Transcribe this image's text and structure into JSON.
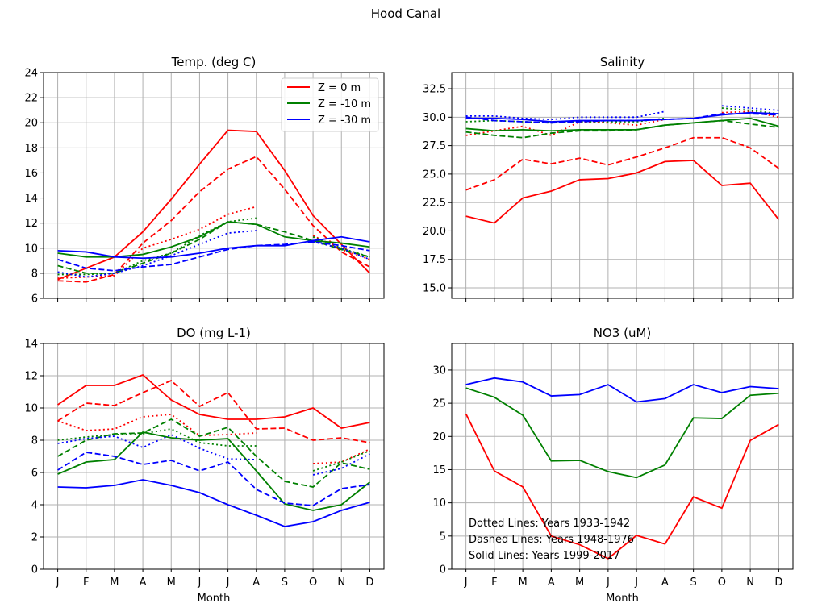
{
  "figure_title": "Hood Canal",
  "months": [
    "J",
    "F",
    "M",
    "A",
    "M",
    "J",
    "J",
    "A",
    "S",
    "O",
    "N",
    "D"
  ],
  "legend": [
    {
      "label": "Z = 0 m",
      "color": "#ff0000"
    },
    {
      "label": "Z = -10 m",
      "color": "#008000"
    },
    {
      "label": "Z = -30 m",
      "color": "#0000ff"
    }
  ],
  "annotations": [
    "Dotted Lines: Years 1933-1942",
    "Dashed Lines: Years 1948-1976",
    "Solid Lines: Years 1999-2017"
  ],
  "chart_data": [
    {
      "type": "line",
      "title": "Temp. (deg C)",
      "xlabel": "",
      "ylabel": "",
      "ylim": [
        6,
        24
      ],
      "yticks": [
        6,
        8,
        10,
        12,
        14,
        16,
        18,
        20,
        22,
        24
      ],
      "ytick_labels": [
        "6",
        "8",
        "10",
        "12",
        "14",
        "16",
        "18",
        "20",
        "22",
        "24"
      ],
      "grid": true,
      "legend_placement": "upper right",
      "series": [
        {
          "color": "#ff0000",
          "style": "solid",
          "values": [
            7.5,
            8.4,
            9.3,
            11.3,
            13.9,
            16.7,
            19.4,
            19.3,
            16.2,
            12.6,
            10.3,
            8.0
          ]
        },
        {
          "color": "#ff0000",
          "style": "dashed",
          "values": [
            7.4,
            7.3,
            7.9,
            10.4,
            12.2,
            14.5,
            16.3,
            17.3,
            14.7,
            11.8,
            9.7,
            8.5
          ]
        },
        {
          "color": "#ff0000",
          "style": "dotted",
          "values": [
            7.6,
            7.7,
            7.8,
            10.0,
            10.7,
            11.5,
            12.7,
            13.3,
            null,
            11.0,
            9.9,
            9.1
          ]
        },
        {
          "color": "#008000",
          "style": "solid",
          "values": [
            9.6,
            9.3,
            9.3,
            9.5,
            10.1,
            10.9,
            12.1,
            11.9,
            10.9,
            10.6,
            10.4,
            10.1
          ]
        },
        {
          "color": "#008000",
          "style": "dashed",
          "values": [
            8.6,
            8.0,
            8.0,
            8.8,
            9.6,
            10.7,
            12.1,
            11.9,
            11.3,
            10.6,
            9.9,
            9.3
          ]
        },
        {
          "color": "#008000",
          "style": "dotted",
          "values": [
            7.9,
            7.9,
            8.0,
            9.0,
            9.6,
            11.0,
            12.1,
            12.4,
            null,
            10.9,
            10.0,
            9.3
          ]
        },
        {
          "color": "#0000ff",
          "style": "solid",
          "values": [
            9.8,
            9.7,
            9.3,
            9.2,
            9.3,
            9.6,
            10.0,
            10.2,
            10.2,
            10.6,
            10.9,
            10.5
          ]
        },
        {
          "color": "#0000ff",
          "style": "dashed",
          "values": [
            9.1,
            8.4,
            8.2,
            8.5,
            8.7,
            9.3,
            9.9,
            10.2,
            10.3,
            10.5,
            10.2,
            9.8
          ]
        },
        {
          "color": "#0000ff",
          "style": "dotted",
          "values": [
            8.1,
            7.7,
            8.0,
            8.6,
            9.4,
            10.3,
            11.2,
            11.4,
            null,
            10.5,
            10.0,
            9.1
          ]
        }
      ]
    },
    {
      "type": "line",
      "title": "Salinity",
      "xlabel": "",
      "ylabel": "",
      "ylim": [
        14.08,
        33.92
      ],
      "yticks": [
        15,
        17.5,
        20,
        22.5,
        25,
        27.5,
        30,
        32.5
      ],
      "ytick_labels": [
        "15.0",
        "17.5",
        "20.0",
        "22.5",
        "25.0",
        "27.5",
        "30.0",
        "32.5"
      ],
      "grid": true,
      "series": [
        {
          "color": "#ff0000",
          "style": "solid",
          "values": [
            21.3,
            20.7,
            22.9,
            23.5,
            24.5,
            24.6,
            25.1,
            26.1,
            26.2,
            24.0,
            24.2,
            21.0
          ]
        },
        {
          "color": "#ff0000",
          "style": "dashed",
          "values": [
            23.6,
            24.5,
            26.3,
            25.9,
            26.4,
            25.8,
            26.5,
            27.3,
            28.2,
            28.2,
            27.3,
            25.5
          ]
        },
        {
          "color": "#ff0000",
          "style": "dotted",
          "values": [
            28.4,
            28.8,
            29.2,
            28.4,
            29.6,
            29.5,
            29.3,
            29.8,
            null,
            30.4,
            30.5,
            30.0
          ]
        },
        {
          "color": "#008000",
          "style": "solid",
          "values": [
            29.0,
            28.8,
            28.9,
            28.8,
            28.9,
            28.9,
            28.9,
            29.3,
            29.5,
            29.7,
            29.9,
            29.2
          ]
        },
        {
          "color": "#008000",
          "style": "dashed",
          "values": [
            28.7,
            28.4,
            28.2,
            28.6,
            28.8,
            28.8,
            28.9,
            29.3,
            29.5,
            29.7,
            29.4,
            29.1
          ]
        },
        {
          "color": "#008000",
          "style": "dotted",
          "values": [
            29.6,
            29.7,
            29.6,
            29.5,
            29.6,
            29.6,
            29.6,
            29.9,
            null,
            30.8,
            30.6,
            30.3
          ]
        },
        {
          "color": "#0000ff",
          "style": "solid",
          "values": [
            29.9,
            29.9,
            29.8,
            29.6,
            29.7,
            29.7,
            29.7,
            29.8,
            29.9,
            30.2,
            30.4,
            30.3
          ]
        },
        {
          "color": "#0000ff",
          "style": "dashed",
          "values": [
            30.0,
            29.7,
            29.6,
            29.5,
            29.6,
            29.7,
            29.7,
            29.8,
            29.9,
            30.3,
            30.3,
            30.2
          ]
        },
        {
          "color": "#0000ff",
          "style": "dotted",
          "values": [
            30.1,
            30.1,
            29.9,
            29.8,
            30.0,
            30.0,
            30.0,
            30.5,
            null,
            31.0,
            30.8,
            30.6
          ]
        }
      ]
    },
    {
      "type": "line",
      "title": "DO (mg L-1)",
      "xlabel": "Month",
      "ylabel": "",
      "ylim": [
        0,
        14
      ],
      "yticks": [
        0,
        2,
        4,
        6,
        8,
        10,
        12,
        14
      ],
      "ytick_labels": [
        "0",
        "2",
        "4",
        "6",
        "8",
        "10",
        "12",
        "14"
      ],
      "grid": true,
      "series": [
        {
          "color": "#ff0000",
          "style": "solid",
          "values": [
            10.2,
            11.4,
            11.4,
            12.05,
            10.5,
            9.6,
            9.3,
            9.3,
            9.45,
            10.0,
            8.75,
            9.1
          ]
        },
        {
          "color": "#ff0000",
          "style": "dashed",
          "values": [
            9.2,
            10.3,
            10.15,
            10.95,
            11.7,
            10.1,
            10.95,
            8.7,
            8.75,
            8.0,
            8.15,
            7.85
          ]
        },
        {
          "color": "#ff0000",
          "style": "dotted",
          "values": [
            9.2,
            8.6,
            8.7,
            9.45,
            9.6,
            8.3,
            8.35,
            8.45,
            null,
            6.55,
            6.65,
            7.45
          ]
        },
        {
          "color": "#008000",
          "style": "solid",
          "values": [
            5.9,
            6.65,
            6.8,
            8.5,
            8.15,
            8.0,
            8.1,
            6.1,
            4.05,
            3.65,
            4.0,
            5.4
          ]
        },
        {
          "color": "#008000",
          "style": "dashed",
          "values": [
            7.0,
            8.0,
            8.4,
            8.45,
            9.3,
            8.25,
            8.8,
            7.0,
            5.45,
            5.1,
            6.6,
            6.2
          ]
        },
        {
          "color": "#008000",
          "style": "dotted",
          "values": [
            8.0,
            8.2,
            8.35,
            8.4,
            8.7,
            7.85,
            7.65,
            7.65,
            null,
            6.1,
            6.65,
            7.35
          ]
        },
        {
          "color": "#0000ff",
          "style": "solid",
          "values": [
            5.1,
            5.05,
            5.2,
            5.55,
            5.2,
            4.75,
            4.0,
            3.35,
            2.65,
            2.95,
            3.65,
            4.15
          ]
        },
        {
          "color": "#0000ff",
          "style": "dashed",
          "values": [
            6.15,
            7.25,
            7.0,
            6.5,
            6.75,
            6.1,
            6.65,
            4.95,
            4.1,
            3.95,
            5.0,
            5.25
          ]
        },
        {
          "color": "#0000ff",
          "style": "dotted",
          "values": [
            7.8,
            8.1,
            8.25,
            7.55,
            8.35,
            7.5,
            6.85,
            6.8,
            null,
            5.85,
            6.25,
            7.15
          ]
        }
      ]
    },
    {
      "type": "line",
      "title": "NO3 (uM)",
      "xlabel": "Month",
      "ylabel": "",
      "ylim": [
        0,
        34
      ],
      "yticks": [
        0,
        5,
        10,
        15,
        20,
        25,
        30
      ],
      "ytick_labels": [
        "0",
        "5",
        "10",
        "15",
        "20",
        "25",
        "30"
      ],
      "grid": true,
      "series": [
        {
          "color": "#ff0000",
          "style": "solid",
          "values": [
            23.4,
            14.8,
            12.4,
            5.0,
            3.7,
            1.6,
            5.1,
            3.8,
            10.9,
            9.2,
            19.4,
            21.8
          ]
        },
        {
          "color": "#008000",
          "style": "solid",
          "values": [
            27.3,
            25.9,
            23.2,
            16.3,
            16.4,
            14.7,
            13.8,
            15.7,
            22.8,
            22.7,
            26.2,
            26.5
          ]
        },
        {
          "color": "#0000ff",
          "style": "solid",
          "values": [
            27.8,
            28.8,
            28.2,
            26.1,
            26.3,
            27.8,
            25.2,
            25.7,
            27.8,
            26.6,
            27.5,
            27.2
          ]
        }
      ]
    }
  ]
}
